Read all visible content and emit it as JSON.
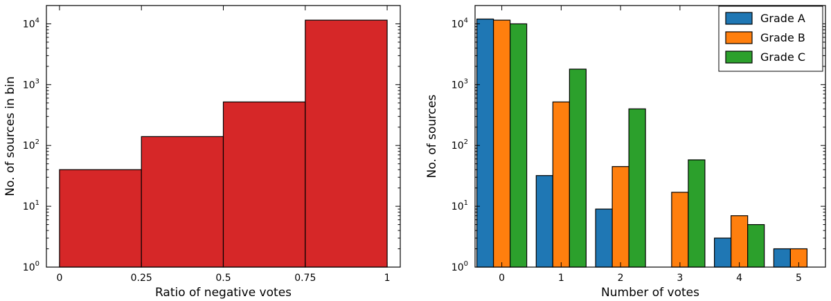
{
  "chart_data": [
    {
      "type": "bar",
      "subtype": "histogram",
      "bin_edges": [
        0,
        0.25,
        0.5,
        0.75,
        1
      ],
      "x_tick_labels": [
        "0",
        "0.25",
        "0.5",
        "0.75",
        "1"
      ],
      "values": [
        40,
        140,
        520,
        11500
      ],
      "color": "#d62728",
      "xlabel": "Ratio of negative votes",
      "ylabel": "No. of sources in bin",
      "xlim": [
        -0.04,
        1.04
      ],
      "ylim": [
        1,
        20000
      ],
      "y_scale": "log",
      "y_ticks": [
        {
          "value": 1,
          "base": "10",
          "exp": "0"
        },
        {
          "value": 10,
          "base": "10",
          "exp": "1"
        },
        {
          "value": 100,
          "base": "10",
          "exp": "2"
        },
        {
          "value": 1000,
          "base": "10",
          "exp": "3"
        },
        {
          "value": 10000,
          "base": "10",
          "exp": "4"
        }
      ],
      "grid": false
    },
    {
      "type": "bar",
      "categories": [
        "0",
        "1",
        "2",
        "3",
        "4",
        "5"
      ],
      "x_values": [
        0,
        1,
        2,
        3,
        4,
        5
      ],
      "series": [
        {
          "name": "Grade A",
          "color": "#1f77b4",
          "values": [
            12000,
            32,
            9,
            1,
            3,
            2
          ]
        },
        {
          "name": "Grade B",
          "color": "#ff7f0e",
          "values": [
            11500,
            520,
            45,
            17,
            7,
            2
          ]
        },
        {
          "name": "Grade C",
          "color": "#2ca02c",
          "values": [
            10000,
            1800,
            400,
            58,
            5,
            1
          ]
        }
      ],
      "xlabel": "Number of votes",
      "ylabel": "No. of sources",
      "xlim": [
        -0.45,
        5.45
      ],
      "ylim": [
        1,
        20000
      ],
      "y_scale": "log",
      "y_ticks": [
        {
          "value": 1,
          "base": "10",
          "exp": "0"
        },
        {
          "value": 10,
          "base": "10",
          "exp": "1"
        },
        {
          "value": 100,
          "base": "10",
          "exp": "2"
        },
        {
          "value": 1000,
          "base": "10",
          "exp": "3"
        },
        {
          "value": 10000,
          "base": "10",
          "exp": "4"
        }
      ],
      "legend_position": "top-right",
      "grid": false
    }
  ]
}
